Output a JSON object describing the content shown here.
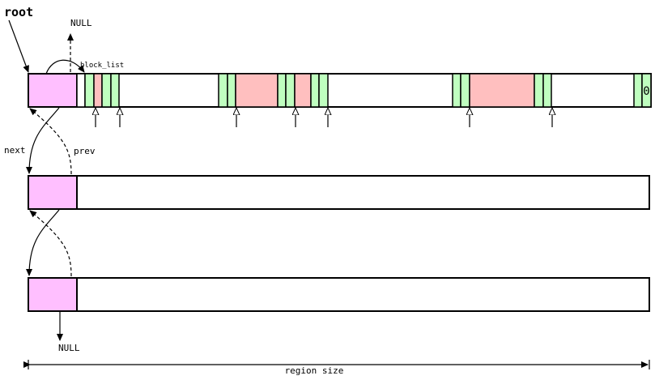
{
  "labels": {
    "root": "root",
    "null_top": "NULL",
    "null_bottom": "NULL",
    "block_list": "block_list",
    "next": "next",
    "prev": "prev",
    "terminator": "0",
    "region_size": "region size"
  },
  "colors": {
    "header": "#ffbfff",
    "free_block": "#ffbfbf",
    "block_tag": "#bfffbf",
    "outline": "#000000",
    "background": "#ffffff"
  }
}
